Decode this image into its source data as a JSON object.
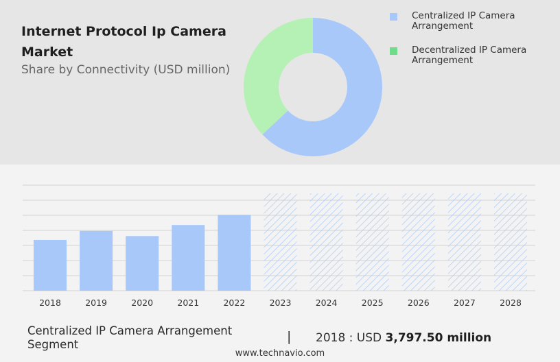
{
  "title": "Internet Protocol Ip Camera Market",
  "subtitle": "Share by Connectivity (USD million)",
  "colors": {
    "centralized": "#a8c8fa",
    "decentralized": "#b5f0b5",
    "legend_decentralized": "#6fdc8c",
    "hatch": "#a8c8fa"
  },
  "legend": [
    {
      "label": "Centralized IP Camera Arrangement"
    },
    {
      "label": "Decentralized IP Camera Arrangement"
    }
  ],
  "footer": {
    "segment_label": "Centralized IP Camera Arrangement Segment",
    "separator": "|",
    "year_prefix": "2018 : USD ",
    "value": "3,797.50 million",
    "website": "www.technavio.com"
  },
  "chart_data": [
    {
      "type": "pie",
      "donut": true,
      "labels": [
        "Centralized IP Camera Arrangement",
        "Decentralized IP Camera Arrangement"
      ],
      "values": [
        63,
        37
      ]
    },
    {
      "type": "bar",
      "categories": [
        "2018",
        "2019",
        "2020",
        "2021",
        "2022",
        "2023",
        "2024",
        "2025",
        "2026",
        "2027",
        "2028"
      ],
      "series": [
        {
          "name": "Centralized IP Camera Arrangement",
          "values": [
            3797.5,
            4470,
            4087,
            4913,
            5674,
            null,
            null,
            null,
            null,
            null,
            null
          ]
        }
      ],
      "forecast_categories": [
        "2023",
        "2024",
        "2025",
        "2026",
        "2027",
        "2028"
      ],
      "ylim": [
        0,
        8000
      ],
      "grid": true
    }
  ]
}
